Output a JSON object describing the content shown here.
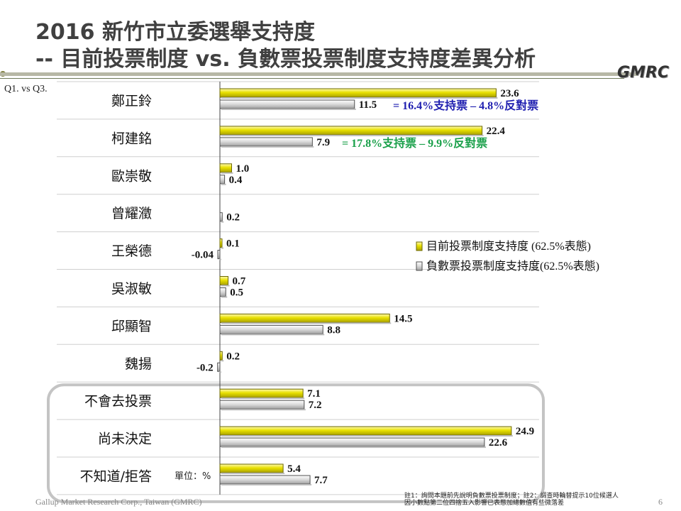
{
  "header": {
    "title_line1": "2016 新竹市立委選舉支持度",
    "title_line2": "-- 目前投票制度 vs. 負數票投票制度支持度差異分析",
    "logo": "GMRC"
  },
  "question_label": "Q1. vs Q3.",
  "unit_label": "單位：%",
  "footer": {
    "company": "Gallup Market Research Corp., Taiwan (GMRC)",
    "note_line1": "註1：詢問本題前先說明負數票投票制度；註2：調查時輪替提示10位候選人",
    "note_line2": "因小數點第二位四捨五入影響已表態加總數值有些微落差",
    "page": "6"
  },
  "colors": {
    "current": "#e8e000",
    "negative": "#a0a0a0",
    "annot1": "#1f1fb0",
    "annot2": "#1aa04a"
  },
  "chart_data": {
    "type": "bar",
    "orientation": "horizontal",
    "categories": [
      "鄭正鈴",
      "柯建銘",
      "歐崇敬",
      "曾耀瀓",
      "王榮德",
      "吳淑敏",
      "邱顯智",
      "魏揚",
      "不會去投票",
      "尚未決定",
      "不知道/拒答"
    ],
    "series": [
      {
        "name": "目前投票制度支持度 (62.5%表態)",
        "values": [
          23.6,
          22.4,
          1.0,
          null,
          0.1,
          0.7,
          14.5,
          0.2,
          7.1,
          24.9,
          5.4
        ],
        "labels": [
          "23.6",
          "22.4",
          "1.0",
          "",
          "0.1",
          "0.7",
          "14.5",
          "0.2",
          "7.1",
          "24.9",
          "5.4"
        ]
      },
      {
        "name": "負數票投票制度支持度(62.5%表態)",
        "values": [
          11.5,
          7.9,
          0.4,
          0.2,
          -0.04,
          0.5,
          8.8,
          -0.2,
          7.2,
          22.6,
          7.7
        ],
        "labels": [
          "11.5",
          "7.9",
          "0.4",
          "0.2",
          "-0.04",
          "0.5",
          "8.8",
          "-0.2",
          "7.2",
          "22.6",
          "7.7"
        ]
      }
    ],
    "annotations": [
      {
        "category": "鄭正鈴",
        "text": "= 16.4%支持票 – 4.8%反對票",
        "color": "#1f1fb0"
      },
      {
        "category": "柯建銘",
        "text": "= 17.8%支持票 – 9.9%反對票",
        "color": "#1aa04a"
      }
    ],
    "legend_position": "right-middle",
    "highlight_group": [
      "不會去投票",
      "尚未決定",
      "不知道/拒答"
    ],
    "xlim": [
      -0.5,
      27
    ]
  }
}
